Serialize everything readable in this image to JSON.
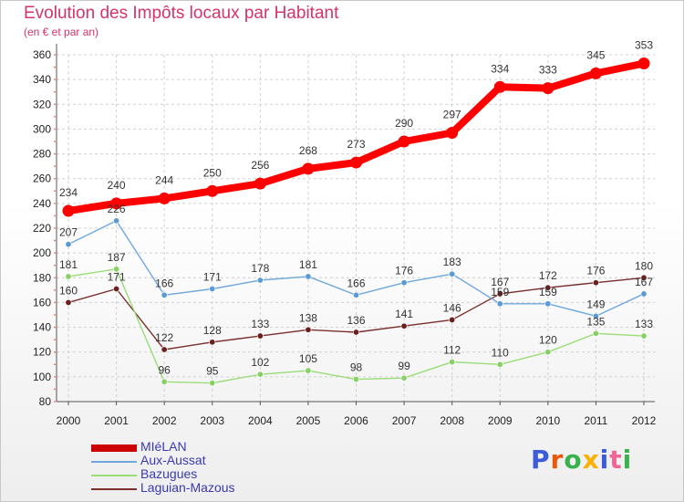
{
  "header": {
    "title": "Evolution des Impôts locaux par Habitant",
    "subtitle": "(en € et par an)"
  },
  "logo": {
    "text": "Proxiti",
    "letter_colors": [
      "#3b5bdb",
      "#e8590c",
      "#37b24d",
      "#fab005",
      "#3b5bdb",
      "#f06595",
      "#37b24d"
    ]
  },
  "chart_data": {
    "type": "line",
    "x": [
      "2000",
      "2001",
      "2002",
      "2003",
      "2004",
      "2005",
      "2006",
      "2007",
      "2008",
      "2009",
      "2010",
      "2011",
      "2012"
    ],
    "ylim": [
      80,
      360
    ],
    "yticks": [
      80,
      100,
      120,
      140,
      160,
      180,
      200,
      220,
      240,
      260,
      280,
      300,
      320,
      340,
      360
    ],
    "grid": "horizontal dashed",
    "legend_position": "bottom-left",
    "series": [
      {
        "name": "Laguian-Mazous",
        "color": "#7a2e2e",
        "marker_color": "#6b1f1f",
        "width": 1.4,
        "values": [
          160,
          171,
          122,
          128,
          133,
          138,
          136,
          141,
          146,
          167,
          172,
          176,
          180
        ],
        "labels": [
          "160",
          "171",
          "122",
          "128",
          "133",
          "138",
          "136",
          "141",
          "146",
          "167",
          "172",
          "176",
          "180"
        ]
      },
      {
        "name": "Bazugues",
        "color": "#99dd77",
        "marker_color": "#88d066",
        "width": 1.4,
        "values": [
          181,
          187,
          96,
          95,
          102,
          105,
          98,
          99,
          112,
          110,
          120,
          135,
          133
        ],
        "labels": [
          "181",
          "187",
          "96",
          "95",
          "102",
          "105",
          "98",
          "99",
          "112",
          "110",
          "120",
          "135",
          "133"
        ]
      },
      {
        "name": "Aux-Aussat",
        "color": "#6fa8dc",
        "marker_color": "#5b9bd5",
        "width": 1.4,
        "values": [
          207,
          226,
          166,
          171,
          178,
          181,
          166,
          176,
          183,
          159,
          159,
          149,
          167
        ],
        "labels": [
          "207",
          "226",
          "166",
          "171",
          "178",
          "181",
          "166",
          "176",
          "183",
          "159",
          "159",
          "149",
          "167"
        ]
      },
      {
        "name": "MIéLAN",
        "color": "#ff0000",
        "marker_color": "#ff0000",
        "width": 8,
        "values": [
          234,
          240,
          244,
          250,
          256,
          268,
          273,
          290,
          297,
          334,
          333,
          345,
          353
        ],
        "labels": [
          "234",
          "240",
          "244",
          "250",
          "256",
          "268",
          "273",
          "290",
          "297",
          "334",
          "333",
          "345",
          "353"
        ]
      }
    ]
  },
  "legend": {
    "items": [
      {
        "label": "MIéLAN",
        "color": "#cc0000",
        "thick": true
      },
      {
        "label": "Aux-Aussat",
        "color": "#6fa8dc",
        "thick": false
      },
      {
        "label": "Bazugues",
        "color": "#99dd77",
        "thick": false
      },
      {
        "label": "Laguian-Mazous",
        "color": "#7a2e2e",
        "thick": false
      }
    ]
  }
}
